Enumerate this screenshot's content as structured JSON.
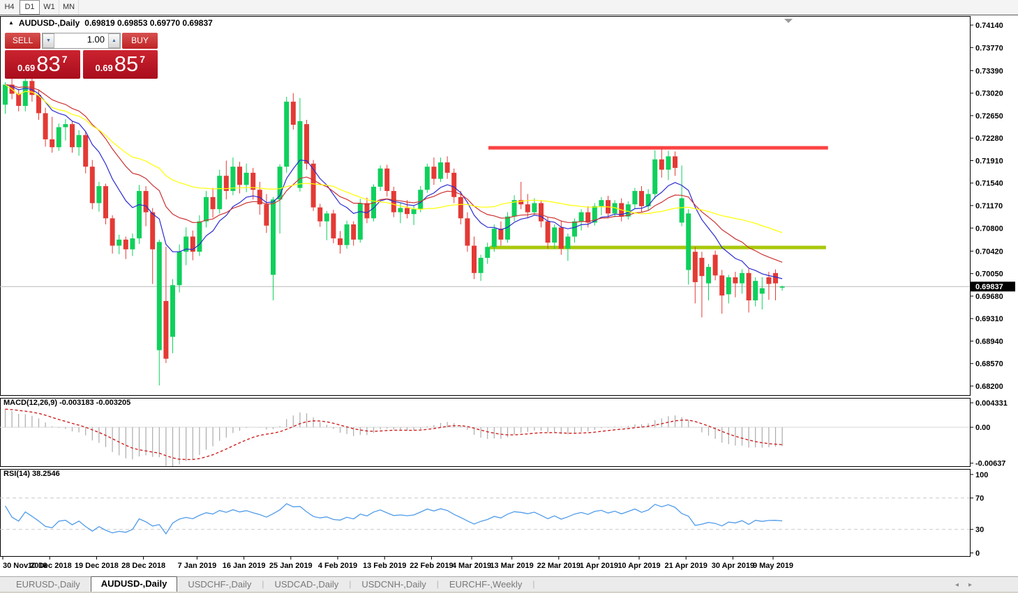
{
  "toolbar": {
    "timeframes": [
      {
        "label": "H4",
        "active": false
      },
      {
        "label": "D1",
        "active": true
      },
      {
        "label": "W1",
        "active": false
      },
      {
        "label": "MN",
        "active": false
      }
    ]
  },
  "chart": {
    "title": "AUDUSD-,Daily",
    "quote": "0.69819 0.69853 0.69770 0.69837",
    "trade_panel": {
      "sell_label": "SELL",
      "buy_label": "BUY",
      "volume": "1.00",
      "spin_down": "▼",
      "spin_up": "▲",
      "sell_price": {
        "prefix": "0.69",
        "big": "83",
        "sup": "7"
      },
      "buy_price": {
        "prefix": "0.69",
        "big": "85",
        "sup": "7"
      }
    }
  },
  "indicators": {
    "macd_label": "MACD(12,26,9) -0.003183 -0.003205",
    "rsi_label": "RSI(14) 38.2546"
  },
  "chart_data": {
    "type": "candlestick",
    "symbol": "AUDUSD",
    "timeframe": "Daily",
    "price_axis": {
      "ticks": [
        "0.74140",
        "0.73770",
        "0.73390",
        "0.73020",
        "0.72650",
        "0.72280",
        "0.71910",
        "0.71540",
        "0.71170",
        "0.70800",
        "0.70420",
        "0.70050",
        "0.69680",
        "0.69310",
        "0.68940",
        "0.68570",
        "0.68200"
      ],
      "current": 0.69837,
      "current_label": "0.69837",
      "top_price": 0.74289,
      "bottom_price": 0.68051
    },
    "date_axis": {
      "ticks": [
        {
          "i": 0,
          "label": "30 Nov 2018"
        },
        {
          "i": 7,
          "label": "10 Dec 2018"
        },
        {
          "i": 14,
          "label": "19 Dec 2018"
        },
        {
          "i": 21,
          "label": "28 Dec 2018"
        },
        {
          "i": 29,
          "label": "7 Jan 2019"
        },
        {
          "i": 36,
          "label": "16 Jan 2019"
        },
        {
          "i": 43,
          "label": "25 Jan 2019"
        },
        {
          "i": 50,
          "label": "4 Feb 2019"
        },
        {
          "i": 57,
          "label": "13 Feb 2019"
        },
        {
          "i": 64,
          "label": "22 Feb 2019"
        },
        {
          "i": 70,
          "label": "4 Mar 2019"
        },
        {
          "i": 76,
          "label": "13 Mar 2019"
        },
        {
          "i": 83,
          "label": "22 Mar 2019"
        },
        {
          "i": 89,
          "label": "1 Apr 2019"
        },
        {
          "i": 95,
          "label": "10 Apr 2019"
        },
        {
          "i": 102,
          "label": "21 Apr 2019"
        },
        {
          "i": 109,
          "label": "30 Apr 2019"
        },
        {
          "i": 115,
          "label": "9 May 2019"
        }
      ]
    },
    "candles": [
      [
        0.7283,
        0.732,
        0.7268,
        0.7316
      ],
      [
        0.7316,
        0.7326,
        0.7292,
        0.7301
      ],
      [
        0.7301,
        0.7309,
        0.7272,
        0.7281
      ],
      [
        0.7281,
        0.733,
        0.7272,
        0.7322
      ],
      [
        0.7322,
        0.7328,
        0.7288,
        0.7299
      ],
      [
        0.7299,
        0.7308,
        0.7258,
        0.7269
      ],
      [
        0.7269,
        0.7278,
        0.7214,
        0.7226
      ],
      [
        0.7226,
        0.7263,
        0.7204,
        0.7213
      ],
      [
        0.7213,
        0.7252,
        0.7207,
        0.7246
      ],
      [
        0.7246,
        0.7259,
        0.7224,
        0.7251
      ],
      [
        0.7251,
        0.7256,
        0.7204,
        0.7213
      ],
      [
        0.7213,
        0.7241,
        0.7199,
        0.7233
      ],
      [
        0.7233,
        0.7239,
        0.717,
        0.7181
      ],
      [
        0.7181,
        0.7192,
        0.7111,
        0.7121
      ],
      [
        0.7121,
        0.7156,
        0.7107,
        0.7149
      ],
      [
        0.7149,
        0.7153,
        0.7086,
        0.7096
      ],
      [
        0.7096,
        0.7101,
        0.7038,
        0.7051
      ],
      [
        0.7051,
        0.7069,
        0.7037,
        0.7061
      ],
      [
        0.7061,
        0.7066,
        0.7029,
        0.7045
      ],
      [
        0.7045,
        0.7071,
        0.7034,
        0.7063
      ],
      [
        0.7063,
        0.7151,
        0.7054,
        0.7141
      ],
      [
        0.7141,
        0.7149,
        0.7083,
        0.7106
      ],
      [
        0.7106,
        0.7113,
        0.6988,
        0.7045
      ],
      [
        0.6879,
        0.7061,
        0.6821,
        0.7057
      ],
      [
        0.696,
        0.7049,
        0.6858,
        0.6865
      ],
      [
        0.6901,
        0.6996,
        0.6874,
        0.6986
      ],
      [
        0.6986,
        0.7053,
        0.6974,
        0.7041
      ],
      [
        0.7041,
        0.7081,
        0.7019,
        0.7066
      ],
      [
        0.7066,
        0.7076,
        0.7027,
        0.7041
      ],
      [
        0.7041,
        0.7101,
        0.7034,
        0.7091
      ],
      [
        0.7091,
        0.7141,
        0.7081,
        0.7131
      ],
      [
        0.7131,
        0.7146,
        0.7097,
        0.7111
      ],
      [
        0.7111,
        0.7176,
        0.7104,
        0.7166
      ],
      [
        0.7166,
        0.7191,
        0.7127,
        0.7141
      ],
      [
        0.7141,
        0.7196,
        0.7134,
        0.7181
      ],
      [
        0.7181,
        0.7189,
        0.7137,
        0.7151
      ],
      [
        0.7151,
        0.7186,
        0.7139,
        0.7171
      ],
      [
        0.7171,
        0.7179,
        0.7127,
        0.7143
      ],
      [
        0.7143,
        0.7156,
        0.7102,
        0.7119
      ],
      [
        0.7119,
        0.7136,
        0.7072,
        0.7084
      ],
      [
        0.7003,
        0.7131,
        0.6961,
        0.7127
      ],
      [
        0.7127,
        0.7185,
        0.7071,
        0.7181
      ],
      [
        0.7181,
        0.7296,
        0.7171,
        0.7288
      ],
      [
        0.7288,
        0.7302,
        0.7242,
        0.725
      ],
      [
        0.7146,
        0.7294,
        0.714,
        0.7256
      ],
      [
        0.7251,
        0.7258,
        0.7176,
        0.7186
      ],
      [
        0.7186,
        0.7192,
        0.7108,
        0.7114
      ],
      [
        0.7114,
        0.712,
        0.7082,
        0.7091
      ],
      [
        0.7091,
        0.7108,
        0.706,
        0.7104
      ],
      [
        0.7104,
        0.711,
        0.7055,
        0.7063
      ],
      [
        0.7063,
        0.7075,
        0.7038,
        0.7052
      ],
      [
        0.7052,
        0.7092,
        0.7046,
        0.7086
      ],
      [
        0.7086,
        0.7091,
        0.7051,
        0.7061
      ],
      [
        0.7061,
        0.7128,
        0.7056,
        0.7121
      ],
      [
        0.7121,
        0.713,
        0.7088,
        0.7096
      ],
      [
        0.7096,
        0.7152,
        0.7091,
        0.7148
      ],
      [
        0.7148,
        0.7183,
        0.7141,
        0.7178
      ],
      [
        0.7178,
        0.7184,
        0.7132,
        0.7141
      ],
      [
        0.7141,
        0.7148,
        0.7098,
        0.7106
      ],
      [
        0.7106,
        0.7121,
        0.7088,
        0.7113
      ],
      [
        0.7113,
        0.7126,
        0.7096,
        0.7103
      ],
      [
        0.7103,
        0.7118,
        0.7085,
        0.7111
      ],
      [
        0.7111,
        0.7149,
        0.7106,
        0.7143
      ],
      [
        0.7143,
        0.7186,
        0.7138,
        0.7181
      ],
      [
        0.7181,
        0.7196,
        0.7151,
        0.7161
      ],
      [
        0.7161,
        0.7196,
        0.7156,
        0.7188
      ],
      [
        0.7188,
        0.7198,
        0.7161,
        0.7171
      ],
      [
        0.7171,
        0.7178,
        0.7121,
        0.7131
      ],
      [
        0.7131,
        0.7141,
        0.7086,
        0.7096
      ],
      [
        0.7096,
        0.7106,
        0.7041,
        0.7051
      ],
      [
        0.7051,
        0.7066,
        0.6996,
        0.7006
      ],
      [
        0.7006,
        0.7036,
        0.6993,
        0.7031
      ],
      [
        0.7031,
        0.7056,
        0.7021,
        0.7049
      ],
      [
        0.7049,
        0.7086,
        0.7041,
        0.7079
      ],
      [
        0.7079,
        0.7091,
        0.7051,
        0.7061
      ],
      [
        0.7061,
        0.7106,
        0.7056,
        0.7099
      ],
      [
        0.7099,
        0.7134,
        0.7091,
        0.7126
      ],
      [
        0.7126,
        0.7156,
        0.7111,
        0.7119
      ],
      [
        0.7119,
        0.7136,
        0.7096,
        0.7106
      ],
      [
        0.7106,
        0.7129,
        0.7101,
        0.7121
      ],
      [
        0.7121,
        0.7126,
        0.7081,
        0.7091
      ],
      [
        0.7091,
        0.7098,
        0.7046,
        0.7056
      ],
      [
        0.7056,
        0.7086,
        0.7046,
        0.7081
      ],
      [
        0.7081,
        0.7091,
        0.7036,
        0.7046
      ],
      [
        0.7046,
        0.7071,
        0.7026,
        0.7066
      ],
      [
        0.7066,
        0.7096,
        0.7056,
        0.7091
      ],
      [
        0.7091,
        0.7111,
        0.7076,
        0.7106
      ],
      [
        0.7106,
        0.7116,
        0.7081,
        0.7089
      ],
      [
        0.7089,
        0.7121,
        0.7084,
        0.7116
      ],
      [
        0.7116,
        0.7131,
        0.7101,
        0.7126
      ],
      [
        0.7126,
        0.7133,
        0.7096,
        0.7104
      ],
      [
        0.7104,
        0.7126,
        0.7098,
        0.7121
      ],
      [
        0.7121,
        0.7129,
        0.7091,
        0.7099
      ],
      [
        0.7099,
        0.7124,
        0.7094,
        0.7119
      ],
      [
        0.7119,
        0.7146,
        0.7112,
        0.7141
      ],
      [
        0.7141,
        0.7149,
        0.7106,
        0.7116
      ],
      [
        0.7116,
        0.7144,
        0.7109,
        0.7136
      ],
      [
        0.7136,
        0.7208,
        0.7128,
        0.7193
      ],
      [
        0.7193,
        0.7212,
        0.7163,
        0.7176
      ],
      [
        0.7176,
        0.7207,
        0.7159,
        0.7198
      ],
      [
        0.7198,
        0.7206,
        0.7166,
        0.7179
      ],
      [
        0.7089,
        0.7183,
        0.7083,
        0.7129
      ],
      [
        0.7011,
        0.7111,
        0.6987,
        0.7104
      ],
      [
        0.7041,
        0.7049,
        0.6956,
        0.6991
      ],
      [
        0.7031,
        0.7041,
        0.6933,
        0.7001
      ],
      [
        0.6989,
        0.7021,
        0.6961,
        0.7016
      ],
      [
        0.7036,
        0.7043,
        0.6994,
        0.7002
      ],
      [
        0.7002,
        0.7011,
        0.6939,
        0.6969
      ],
      [
        0.6971,
        0.7003,
        0.6956,
        0.6999
      ],
      [
        0.6999,
        0.7008,
        0.6966,
        0.6989
      ],
      [
        0.6989,
        0.7012,
        0.6972,
        0.7006
      ],
      [
        0.7006,
        0.7013,
        0.6941,
        0.6961
      ],
      [
        0.6961,
        0.6999,
        0.6951,
        0.6993
      ],
      [
        0.6972,
        0.6999,
        0.6946,
        0.6981
      ],
      [
        0.6999,
        0.7008,
        0.6962,
        0.6988
      ],
      [
        0.7006,
        0.7012,
        0.6961,
        0.6989
      ],
      [
        0.69819,
        0.69853,
        0.6977,
        0.69837
      ]
    ],
    "moving_averages": [
      {
        "name": "fast-ma",
        "period": 10,
        "kind": "ema",
        "color": "#2b2bd0"
      },
      {
        "name": "medium-ma",
        "period": 20,
        "kind": "ema",
        "color": "#cc3333"
      },
      {
        "name": "slow-ma",
        "period": 50,
        "kind": "sma",
        "color": "#ffff00"
      }
    ],
    "hlines": [
      {
        "name": "resistance-line",
        "price": 0.7212,
        "i1": 72.5,
        "i2": 123.2,
        "color": "#fb4343",
        "width": 5
      },
      {
        "name": "support-line",
        "price": 0.7048,
        "i1": 72.7,
        "i2": 122.9,
        "color": "#a9c80b",
        "width": 5
      }
    ],
    "macd": {
      "params": "12,26,9",
      "value": -0.003183,
      "signal": -0.003205,
      "axis": [
        {
          "v": 0.004331,
          "label": "0.004331"
        },
        {
          "v": 0,
          "label": "0.00"
        },
        {
          "v": -0.00637,
          "label": "-0.00637"
        }
      ],
      "range": [
        0.0052,
        -0.0069
      ],
      "hist_color": "#ababab",
      "signal_color": "#d02020"
    },
    "rsi": {
      "period": 14,
      "value": 38.2546,
      "axis": [
        {
          "v": 100,
          "label": "100"
        },
        {
          "v": 70,
          "label": "70"
        },
        {
          "v": 30,
          "label": "30"
        },
        {
          "v": 0,
          "label": "0"
        }
      ],
      "levels": [
        70,
        30
      ],
      "range": [
        107,
        -4
      ],
      "line_color": "#4f9bea"
    },
    "colors": {
      "up": "#0fd05c",
      "down": "#e33a35",
      "current_price_line": "#b9b9b9",
      "frame": "#000000",
      "scale_marker": "#9a9a9a"
    }
  },
  "tabs": {
    "items": [
      {
        "label": "EURUSD-,Daily",
        "active": false
      },
      {
        "label": "AUDUSD-,Daily",
        "active": true
      },
      {
        "label": "USDCHF-,Daily",
        "active": false
      },
      {
        "label": "USDCAD-,Daily",
        "active": false
      },
      {
        "label": "USDCNH-,Daily",
        "active": false
      },
      {
        "label": "EURCHF-,Weekly",
        "active": false
      }
    ],
    "separator": "|",
    "scroll_left": "◂",
    "scroll_right": "▸"
  }
}
